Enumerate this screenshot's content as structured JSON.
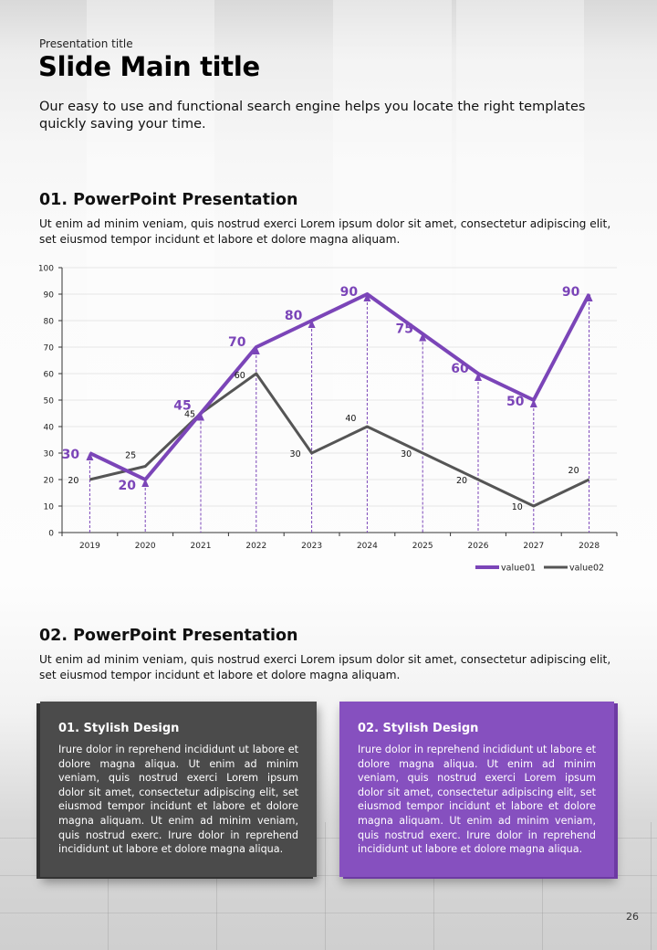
{
  "header": {
    "presentation_title": "Presentation title",
    "main_title": "Slide Main title",
    "intro": "Our easy to use and functional search engine helps you locate the right templates quickly saving your time."
  },
  "section1": {
    "title": "01. PowerPoint Presentation",
    "body": "Ut enim ad minim veniam, quis nostrud exerci  Lorem ipsum dolor sit amet, consectetur adipiscing elit, set eiusmod tempor incidunt et labore et dolore magna aliquam."
  },
  "section2": {
    "title": "02. PowerPoint Presentation",
    "body": "Ut enim ad minim veniam, quis nostrud exerci  Lorem ipsum dolor sit amet, consectetur adipiscing elit, set eiusmod tempor incidunt et labore et dolore magna aliquam."
  },
  "boxes": [
    {
      "title": "01. Stylish Design",
      "body": "Irure dolor in reprehend incididunt ut labore et dolore magna aliqua. Ut enim ad minim veniam, quis nostrud exerci  Lorem ipsum dolor sit amet, consectetur adipiscing elit, set eiusmod tempor incidunt et labore et dolore magna aliquam. Ut enim ad minim veniam, quis nostrud exerc. Irure dolor in reprehend incididunt ut labore et dolore magna aliqua.",
      "color": "#4b4b4b"
    },
    {
      "title": "02. Stylish Design",
      "body": "Irure dolor in reprehend incididunt ut labore et dolore magna aliqua. Ut enim ad minim veniam, quis nostrud exerci  Lorem ipsum dolor sit amet, consectetur adipiscing elit, set eiusmod tempor incidunt et labore et dolore magna aliquam. Ut enim ad minim veniam, quis nostrud exerc. Irure dolor in reprehend incididunt ut labore et dolore magna aliqua.",
      "color": "#8650bf"
    }
  ],
  "page_number": "26",
  "chart_data": {
    "type": "line",
    "title": "",
    "xlabel": "",
    "ylabel": "",
    "categories": [
      "2019",
      "2020",
      "2021",
      "2022",
      "2023",
      "2024",
      "2025",
      "2026",
      "2027",
      "2028"
    ],
    "ylim": [
      0,
      100
    ],
    "yticks": [
      0,
      10,
      20,
      30,
      40,
      50,
      60,
      70,
      80,
      90,
      100
    ],
    "grid": true,
    "legend": "bottom-right",
    "series": [
      {
        "name": "value01",
        "color": "#7b45b8",
        "values": [
          30,
          20,
          45,
          70,
          80,
          90,
          75,
          60,
          50,
          90
        ],
        "drop_lines": true,
        "markers": "triangle"
      },
      {
        "name": "value02",
        "color": "#555555",
        "values": [
          20,
          25,
          45,
          60,
          30,
          40,
          30,
          20,
          10,
          20
        ]
      }
    ]
  }
}
